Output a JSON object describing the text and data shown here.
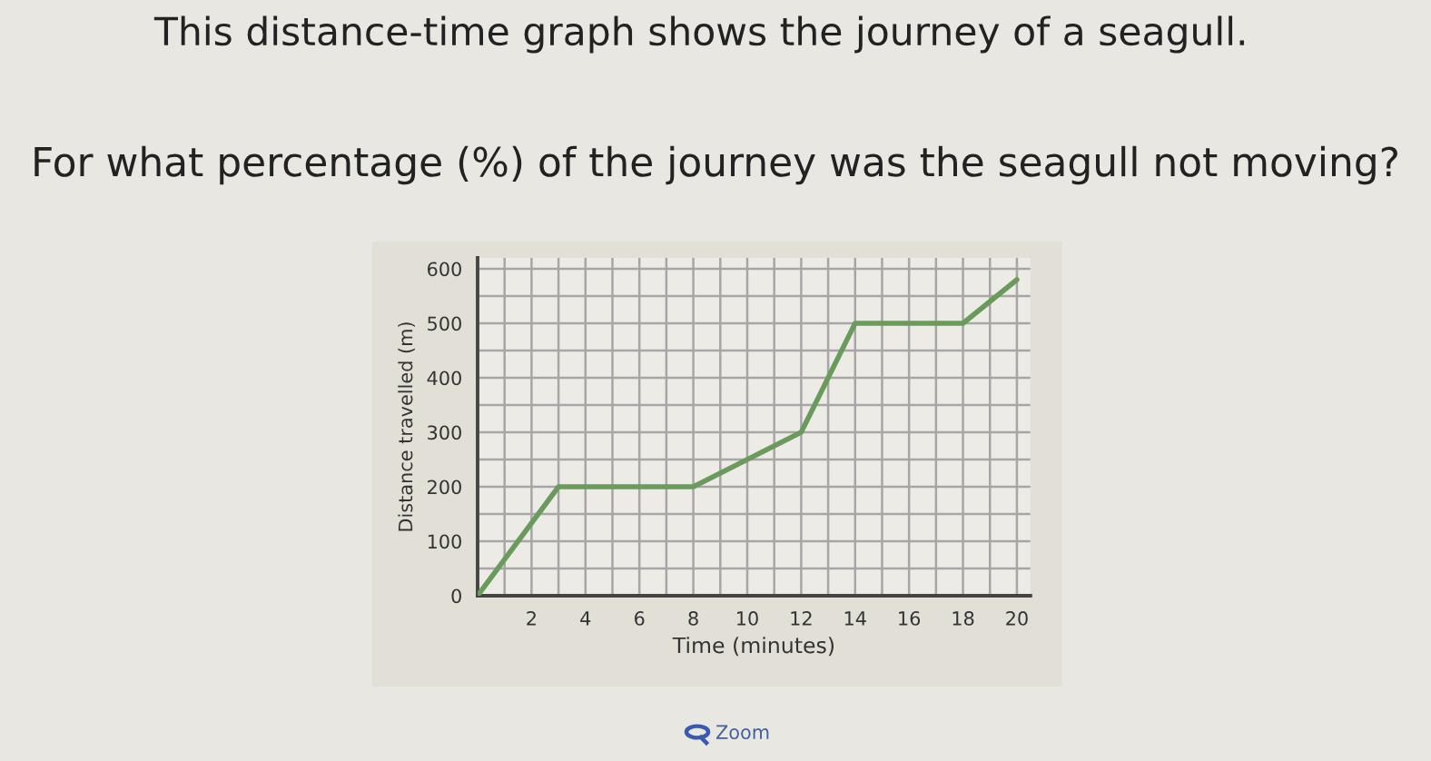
{
  "chart_data": {
    "type": "line",
    "title": "This distance-time graph shows the journey of a seagull.",
    "subtitle": "For what percentage (%) of the journey was the seagull not moving?",
    "xlabel": "Time (minutes)",
    "ylabel": "Distance travelled (m)",
    "x": [
      0,
      3,
      8,
      12,
      14,
      18,
      20
    ],
    "series": [
      {
        "color": "#6a9a5c",
        "values": [
          0,
          200,
          200,
          300,
          500,
          500,
          580
        ]
      }
    ],
    "xlim": [
      0,
      20.5
    ],
    "xticks": [
      {
        "value": 0,
        "label": null
      },
      {
        "value": 1,
        "label": null
      },
      2,
      {
        "value": 3,
        "label": null
      },
      4,
      {
        "value": 5,
        "label": null
      },
      6,
      {
        "value": 7,
        "label": null
      },
      8,
      {
        "value": 9,
        "label": null
      },
      10,
      {
        "value": 11,
        "label": null
      },
      12,
      {
        "value": 13,
        "label": null
      },
      14,
      {
        "value": 15,
        "label": null
      },
      16,
      {
        "value": 17,
        "label": null
      },
      18,
      {
        "value": 19,
        "label": null
      },
      20
    ],
    "ylim": [
      0,
      620
    ],
    "yticks": [
      0,
      {
        "value": 50,
        "label": null
      },
      100,
      {
        "value": 150,
        "label": null
      },
      200,
      {
        "value": 250,
        "label": null
      },
      300,
      {
        "value": 350,
        "label": null
      },
      400,
      {
        "value": 450,
        "label": null
      },
      500,
      {
        "value": 550,
        "label": null
      },
      600
    ],
    "grid": true,
    "marker": "none",
    "line_style": "solid",
    "annotations": [
      "Zoom"
    ]
  }
}
